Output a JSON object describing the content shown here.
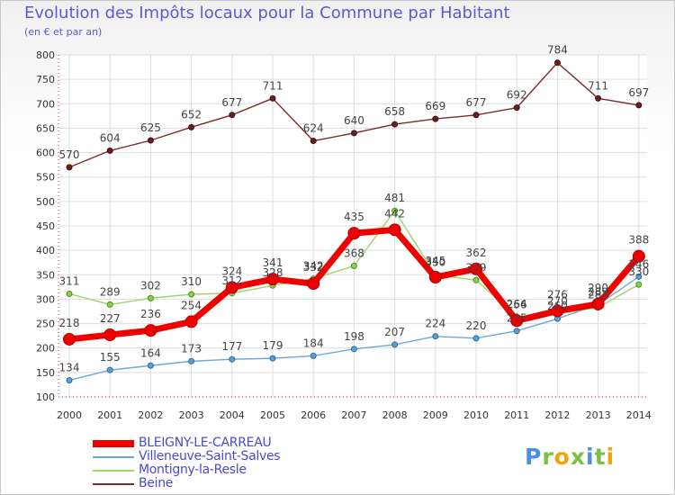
{
  "chart_data": {
    "type": "line",
    "title": "Evolution des Impôts locaux pour la Commune par Habitant",
    "subtitle": "(en € et par an)",
    "xlabel": "",
    "ylabel": "",
    "categories": [
      "2000",
      "2001",
      "2002",
      "2003",
      "2004",
      "2005",
      "2006",
      "2007",
      "2008",
      "2009",
      "2010",
      "2011",
      "2012",
      "2013",
      "2014"
    ],
    "ylim": [
      100,
      800
    ],
    "yticks": [
      100,
      150,
      200,
      250,
      300,
      350,
      400,
      450,
      500,
      550,
      600,
      650,
      700,
      750,
      800
    ],
    "grid": true,
    "legend_position": "bottom-left",
    "series": [
      {
        "name": "Beine",
        "color": "#7d2a2a",
        "values": [
          570,
          604,
          625,
          652,
          677,
          711,
          624,
          640,
          658,
          669,
          677,
          692,
          784,
          711,
          697
        ],
        "labels": [
          "570",
          "604",
          "625",
          "652",
          "677",
          "711",
          "624",
          "640",
          "658",
          "669",
          "677",
          "692",
          "784",
          "711",
          "697"
        ]
      },
      {
        "name": "Montigny-la-Resle",
        "color": "#9fd36b",
        "values": [
          311,
          289,
          302,
          310,
          312,
          328,
          342,
          368,
          481,
          350,
          339,
          264,
          270,
          283,
          330
        ],
        "labels": [
          "311",
          "289",
          "302",
          "310",
          "312",
          "328",
          "342",
          "368",
          "481",
          "350",
          "339",
          "264",
          "270",
          "283",
          "330"
        ]
      },
      {
        "name": "Villeneuve-Saint-Salves",
        "color": "#6fa8d8",
        "values": [
          134,
          155,
          164,
          173,
          177,
          179,
          184,
          198,
          207,
          224,
          220,
          235,
          260,
          289,
          346
        ],
        "labels": [
          "134",
          "155",
          "164",
          "173",
          "177",
          "179",
          "184",
          "198",
          "207",
          "224",
          "220",
          "235",
          "260",
          "289",
          "346"
        ]
      },
      {
        "name": "BLEIGNY-LE-CARREAU",
        "color": "#ee0000",
        "values": [
          218,
          227,
          236,
          254,
          324,
          341,
          332,
          435,
          442,
          345,
          362,
          256,
          276,
          290,
          388
        ],
        "labels": [
          "218",
          "227",
          "236",
          "254",
          "324",
          "341",
          "332",
          "435",
          "442",
          "345",
          "362",
          "256",
          "276",
          "290",
          "388"
        ]
      }
    ]
  },
  "legend": {
    "items": [
      {
        "label": "BLEIGNY-LE-CARREAU",
        "color": "#ee0000"
      },
      {
        "label": "Villeneuve-Saint-Salves",
        "color": "#6fa8d8"
      },
      {
        "label": "Montigny-la-Resle",
        "color": "#9fd36b"
      },
      {
        "label": "Beine",
        "color": "#7d2a2a"
      }
    ]
  },
  "branding": {
    "letters": [
      "P",
      "r",
      "o",
      "x",
      "i",
      "t",
      "i"
    ],
    "colors": [
      "#4b8ee6",
      "#7bc043",
      "#f2a20a",
      "#7bc043",
      "#4b8ee6",
      "#7bc043",
      "#f2a20a"
    ]
  }
}
